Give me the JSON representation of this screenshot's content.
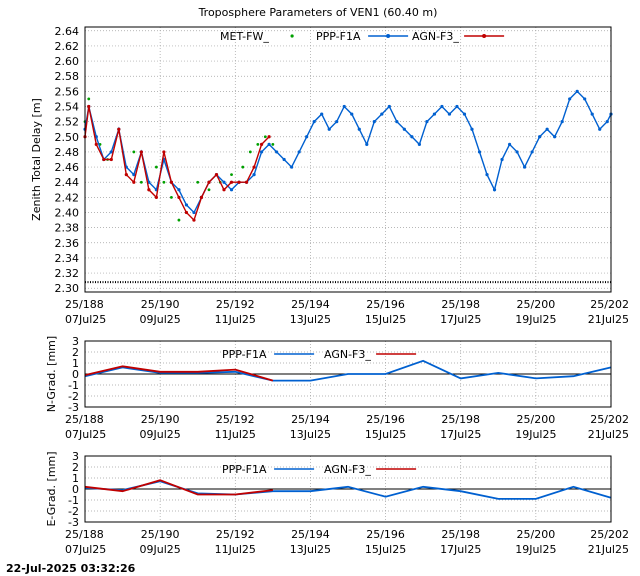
{
  "title": "Troposphere Parameters of VEN1 (60.40 m)",
  "timestamp": "22-Jul-2025 03:32:26",
  "colors": {
    "met": "#00a000",
    "ppp": "#0060d0",
    "agn": "#c00000",
    "grid": "#a0a0a0",
    "offset_line": "#000000"
  },
  "x_ticks": [
    {
      "top": "25/188",
      "bottom": "07Jul25"
    },
    {
      "top": "25/190",
      "bottom": "09Jul25"
    },
    {
      "top": "25/192",
      "bottom": "11Jul25"
    },
    {
      "top": "25/194",
      "bottom": "13Jul25"
    },
    {
      "top": "25/196",
      "bottom": "15Jul25"
    },
    {
      "top": "25/198",
      "bottom": "17Jul25"
    },
    {
      "top": "25/200",
      "bottom": "19Jul25"
    },
    {
      "top": "25/202",
      "bottom": "21Jul25"
    }
  ],
  "chart_data": [
    {
      "type": "line",
      "ylabel": "Zenith Total Delay [m]",
      "xlim": [
        188,
        202
      ],
      "ylim": [
        2.295,
        2.645
      ],
      "yticks": [
        "2.30",
        "2.32",
        "2.34",
        "2.36",
        "2.38",
        "2.40",
        "2.42",
        "2.44",
        "2.46",
        "2.48",
        "2.50",
        "2.52",
        "2.54",
        "2.56",
        "2.58",
        "2.60",
        "2.62",
        "2.64"
      ],
      "legend": [
        "MET-FW_",
        "PPP-F1A",
        "AGN-F3_"
      ],
      "legend_position": "top-right",
      "grid": true,
      "met_offset_value": 2.308,
      "series": [
        {
          "name": "MET-FW_",
          "x": [
            188.0,
            188.1,
            188.4,
            188.6,
            188.9,
            189.1,
            189.3,
            189.5,
            189.7,
            189.9,
            190.1,
            190.3,
            190.5,
            190.7,
            191.0,
            191.3,
            191.6,
            191.9,
            192.2,
            192.4,
            192.6,
            192.8,
            193.0
          ],
          "y": [
            2.52,
            2.55,
            2.49,
            2.47,
            2.51,
            2.45,
            2.48,
            2.44,
            2.43,
            2.46,
            2.44,
            2.42,
            2.39,
            2.41,
            2.44,
            2.43,
            2.44,
            2.45,
            2.46,
            2.48,
            2.49,
            2.5,
            2.49
          ]
        },
        {
          "name": "PPP-F1A",
          "x": [
            188.0,
            188.1,
            188.3,
            188.5,
            188.7,
            188.9,
            189.1,
            189.3,
            189.5,
            189.7,
            189.9,
            190.1,
            190.3,
            190.5,
            190.7,
            190.9,
            191.1,
            191.3,
            191.5,
            191.7,
            191.9,
            192.1,
            192.3,
            192.5,
            192.7,
            192.9,
            193.1,
            193.3,
            193.5,
            193.7,
            193.9,
            194.1,
            194.3,
            194.5,
            194.7,
            194.9,
            195.1,
            195.3,
            195.5,
            195.7,
            195.9,
            196.1,
            196.3,
            196.5,
            196.7,
            196.9,
            197.1,
            197.3,
            197.5,
            197.7,
            197.9,
            198.1,
            198.3,
            198.5,
            198.7,
            198.9,
            199.1,
            199.3,
            199.5,
            199.7,
            199.9,
            200.1,
            200.3,
            200.5,
            200.7,
            200.9,
            201.1,
            201.3,
            201.5,
            201.7,
            201.9,
            202.0
          ],
          "y": [
            2.51,
            2.54,
            2.5,
            2.47,
            2.48,
            2.51,
            2.46,
            2.45,
            2.48,
            2.44,
            2.43,
            2.47,
            2.44,
            2.43,
            2.41,
            2.4,
            2.42,
            2.44,
            2.45,
            2.44,
            2.43,
            2.44,
            2.44,
            2.45,
            2.48,
            2.49,
            2.48,
            2.47,
            2.46,
            2.48,
            2.5,
            2.52,
            2.53,
            2.51,
            2.52,
            2.54,
            2.53,
            2.51,
            2.49,
            2.52,
            2.53,
            2.54,
            2.52,
            2.51,
            2.5,
            2.49,
            2.52,
            2.53,
            2.54,
            2.53,
            2.54,
            2.53,
            2.51,
            2.48,
            2.45,
            2.43,
            2.47,
            2.49,
            2.48,
            2.46,
            2.48,
            2.5,
            2.51,
            2.5,
            2.52,
            2.55,
            2.56,
            2.55,
            2.53,
            2.51,
            2.52,
            2.53
          ]
        },
        {
          "name": "AGN-F3_",
          "x": [
            188.0,
            188.1,
            188.3,
            188.5,
            188.7,
            188.9,
            189.1,
            189.3,
            189.5,
            189.7,
            189.9,
            190.1,
            190.3,
            190.5,
            190.7,
            190.9,
            191.1,
            191.3,
            191.5,
            191.7,
            191.9,
            192.1,
            192.3,
            192.5,
            192.7,
            192.9
          ],
          "y": [
            2.5,
            2.54,
            2.49,
            2.47,
            2.47,
            2.51,
            2.45,
            2.44,
            2.48,
            2.43,
            2.42,
            2.48,
            2.44,
            2.42,
            2.4,
            2.39,
            2.42,
            2.44,
            2.45,
            2.43,
            2.44,
            2.44,
            2.44,
            2.46,
            2.49,
            2.5
          ]
        }
      ]
    },
    {
      "type": "line",
      "ylabel": "N-Grad. [mm]",
      "xlim": [
        188,
        202
      ],
      "ylim": [
        -3,
        3
      ],
      "yticks": [
        "3",
        "2",
        "1",
        "0",
        "-1",
        "-2",
        "-3"
      ],
      "legend": [
        "PPP-F1A",
        "AGN-F3_"
      ],
      "legend_position": "top-center",
      "grid": true,
      "series": [
        {
          "name": "PPP-F1A",
          "x": [
            188,
            189,
            190,
            191,
            192,
            193,
            194,
            195,
            196,
            197,
            198,
            199,
            200,
            201,
            202
          ],
          "y": [
            -0.2,
            0.6,
            0.1,
            0.1,
            0.2,
            -0.6,
            -0.6,
            0.0,
            0.0,
            1.2,
            -0.4,
            0.1,
            -0.4,
            -0.2,
            0.6
          ]
        },
        {
          "name": "AGN-F3_",
          "x": [
            188,
            189,
            190,
            191,
            192,
            193
          ],
          "y": [
            -0.1,
            0.7,
            0.2,
            0.2,
            0.4,
            -0.6
          ]
        }
      ]
    },
    {
      "type": "line",
      "ylabel": "E-Grad. [mm]",
      "xlim": [
        188,
        202
      ],
      "ylim": [
        -3,
        3
      ],
      "yticks": [
        "3",
        "2",
        "1",
        "0",
        "-1",
        "-2",
        "-3"
      ],
      "legend": [
        "PPP-F1A",
        "AGN-F3_"
      ],
      "legend_position": "top-center",
      "grid": true,
      "series": [
        {
          "name": "PPP-F1A",
          "x": [
            188,
            189,
            190,
            191,
            192,
            193,
            194,
            195,
            196,
            197,
            198,
            199,
            200,
            201,
            202
          ],
          "y": [
            0.1,
            -0.1,
            0.7,
            -0.4,
            -0.5,
            -0.2,
            -0.2,
            0.2,
            -0.7,
            0.2,
            -0.2,
            -0.9,
            -0.9,
            0.2,
            -0.8
          ]
        },
        {
          "name": "AGN-F3_",
          "x": [
            188,
            189,
            190,
            191,
            192,
            193
          ],
          "y": [
            0.2,
            -0.2,
            0.8,
            -0.5,
            -0.5,
            -0.1
          ]
        }
      ]
    }
  ]
}
